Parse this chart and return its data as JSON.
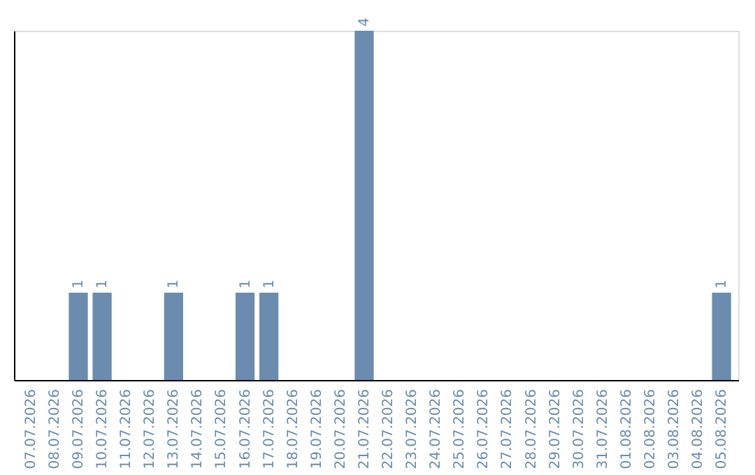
{
  "chart_data": {
    "type": "bar",
    "categories": [
      "07.07.2026",
      "08.07.2026",
      "09.07.2026",
      "10.07.2026",
      "11.07.2026",
      "12.07.2026",
      "13.07.2026",
      "14.07.2026",
      "15.07.2026",
      "16.07.2026",
      "17.07.2026",
      "18.07.2026",
      "19.07.2026",
      "20.07.2026",
      "21.07.2026",
      "22.07.2026",
      "23.07.2026",
      "24.07.2026",
      "25.07.2026",
      "26.07.2026",
      "27.07.2026",
      "28.07.2026",
      "29.07.2026",
      "30.07.2026",
      "31.07.2026",
      "01.08.2026",
      "02.08.2026",
      "03.08.2026",
      "04.08.2026",
      "05.08.2026"
    ],
    "values": [
      0,
      0,
      1,
      1,
      0,
      0,
      1,
      0,
      0,
      1,
      1,
      0,
      0,
      0,
      4,
      0,
      0,
      0,
      0,
      0,
      0,
      0,
      0,
      0,
      0,
      0,
      0,
      0,
      0,
      1
    ],
    "value_labels": [
      null,
      null,
      "1",
      "1",
      null,
      null,
      "1",
      null,
      null,
      "1",
      "1",
      null,
      null,
      null,
      "4",
      null,
      null,
      null,
      null,
      null,
      null,
      null,
      null,
      null,
      null,
      null,
      null,
      null,
      null,
      "1"
    ],
    "color": "#6b8cae",
    "tick_labels": "x"
  }
}
